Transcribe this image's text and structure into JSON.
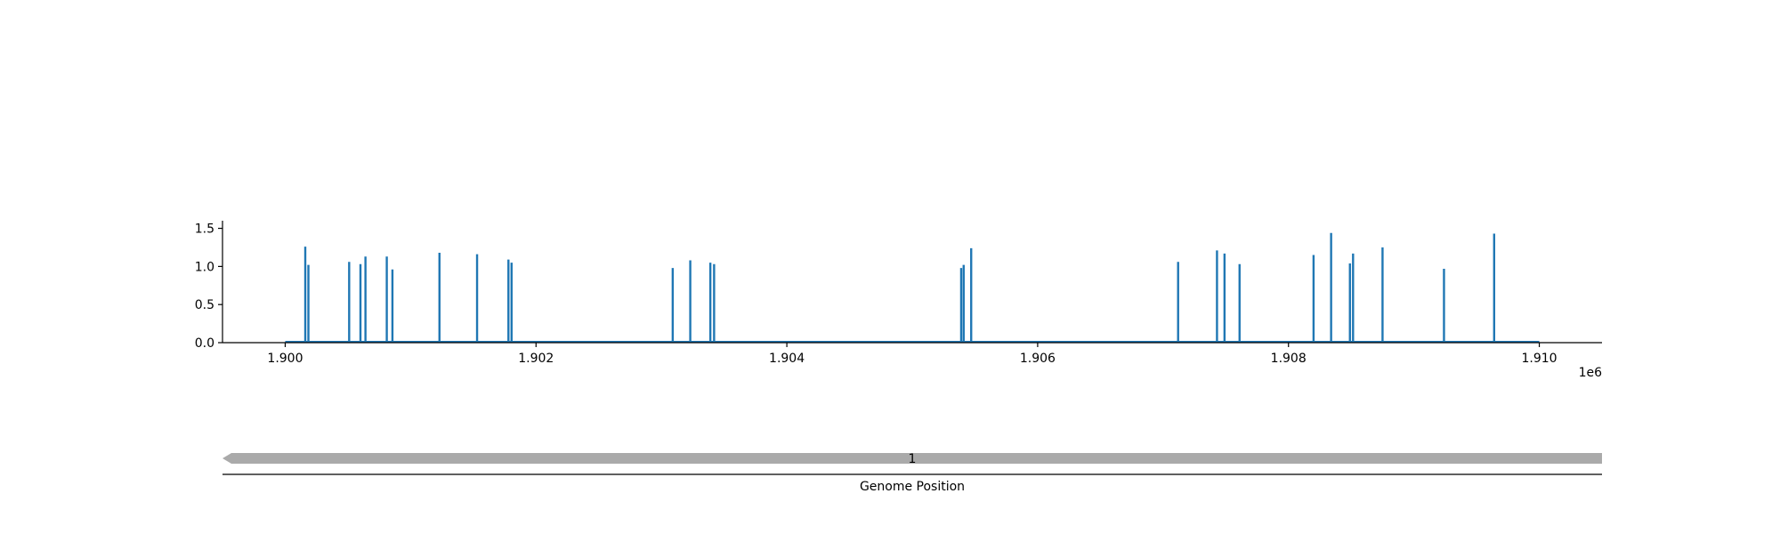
{
  "chart_data": {
    "type": "bar",
    "title": "",
    "xlabel": "Genome Position",
    "ylabel": "",
    "x_multiplier_label": "1e6",
    "xlim": [
      1899500,
      1910500
    ],
    "ylim": [
      0,
      1.6
    ],
    "x_ticks": [
      {
        "value": 1900000,
        "label": "1.900"
      },
      {
        "value": 1902000,
        "label": "1.902"
      },
      {
        "value": 1904000,
        "label": "1.904"
      },
      {
        "value": 1906000,
        "label": "1.906"
      },
      {
        "value": 1908000,
        "label": "1.908"
      },
      {
        "value": 1910000,
        "label": "1.910"
      }
    ],
    "y_ticks": [
      {
        "value": 0.0,
        "label": "0.0"
      },
      {
        "value": 0.5,
        "label": "0.5"
      },
      {
        "value": 1.0,
        "label": "1.0"
      },
      {
        "value": 1.5,
        "label": "1.5"
      }
    ],
    "baseline_range": [
      1900000,
      1910000
    ],
    "series": [
      {
        "color": "#1f77b4",
        "points": [
          {
            "x": 1900160,
            "y": 1.26
          },
          {
            "x": 1900185,
            "y": 1.02
          },
          {
            "x": 1900510,
            "y": 1.06
          },
          {
            "x": 1900600,
            "y": 1.03
          },
          {
            "x": 1900640,
            "y": 1.13
          },
          {
            "x": 1900810,
            "y": 1.13
          },
          {
            "x": 1900855,
            "y": 0.96
          },
          {
            "x": 1901230,
            "y": 1.18
          },
          {
            "x": 1901530,
            "y": 1.16
          },
          {
            "x": 1901780,
            "y": 1.09
          },
          {
            "x": 1901805,
            "y": 1.05
          },
          {
            "x": 1903090,
            "y": 0.98
          },
          {
            "x": 1903230,
            "y": 1.08
          },
          {
            "x": 1903390,
            "y": 1.05
          },
          {
            "x": 1903420,
            "y": 1.03
          },
          {
            "x": 1905390,
            "y": 0.98
          },
          {
            "x": 1905410,
            "y": 1.02
          },
          {
            "x": 1905470,
            "y": 1.24
          },
          {
            "x": 1907120,
            "y": 1.06
          },
          {
            "x": 1907430,
            "y": 1.21
          },
          {
            "x": 1907490,
            "y": 1.17
          },
          {
            "x": 1907610,
            "y": 1.03
          },
          {
            "x": 1908200,
            "y": 1.15
          },
          {
            "x": 1908340,
            "y": 1.44
          },
          {
            "x": 1908490,
            "y": 1.04
          },
          {
            "x": 1908515,
            "y": 1.17
          },
          {
            "x": 1908750,
            "y": 1.25
          },
          {
            "x": 1909240,
            "y": 0.97
          },
          {
            "x": 1909640,
            "y": 1.43
          }
        ]
      }
    ],
    "gene_track": {
      "features": [
        {
          "label": "1",
          "start": 1899500,
          "end": 1910500,
          "strand": "-",
          "color": "#aaaaaa"
        }
      ]
    }
  }
}
